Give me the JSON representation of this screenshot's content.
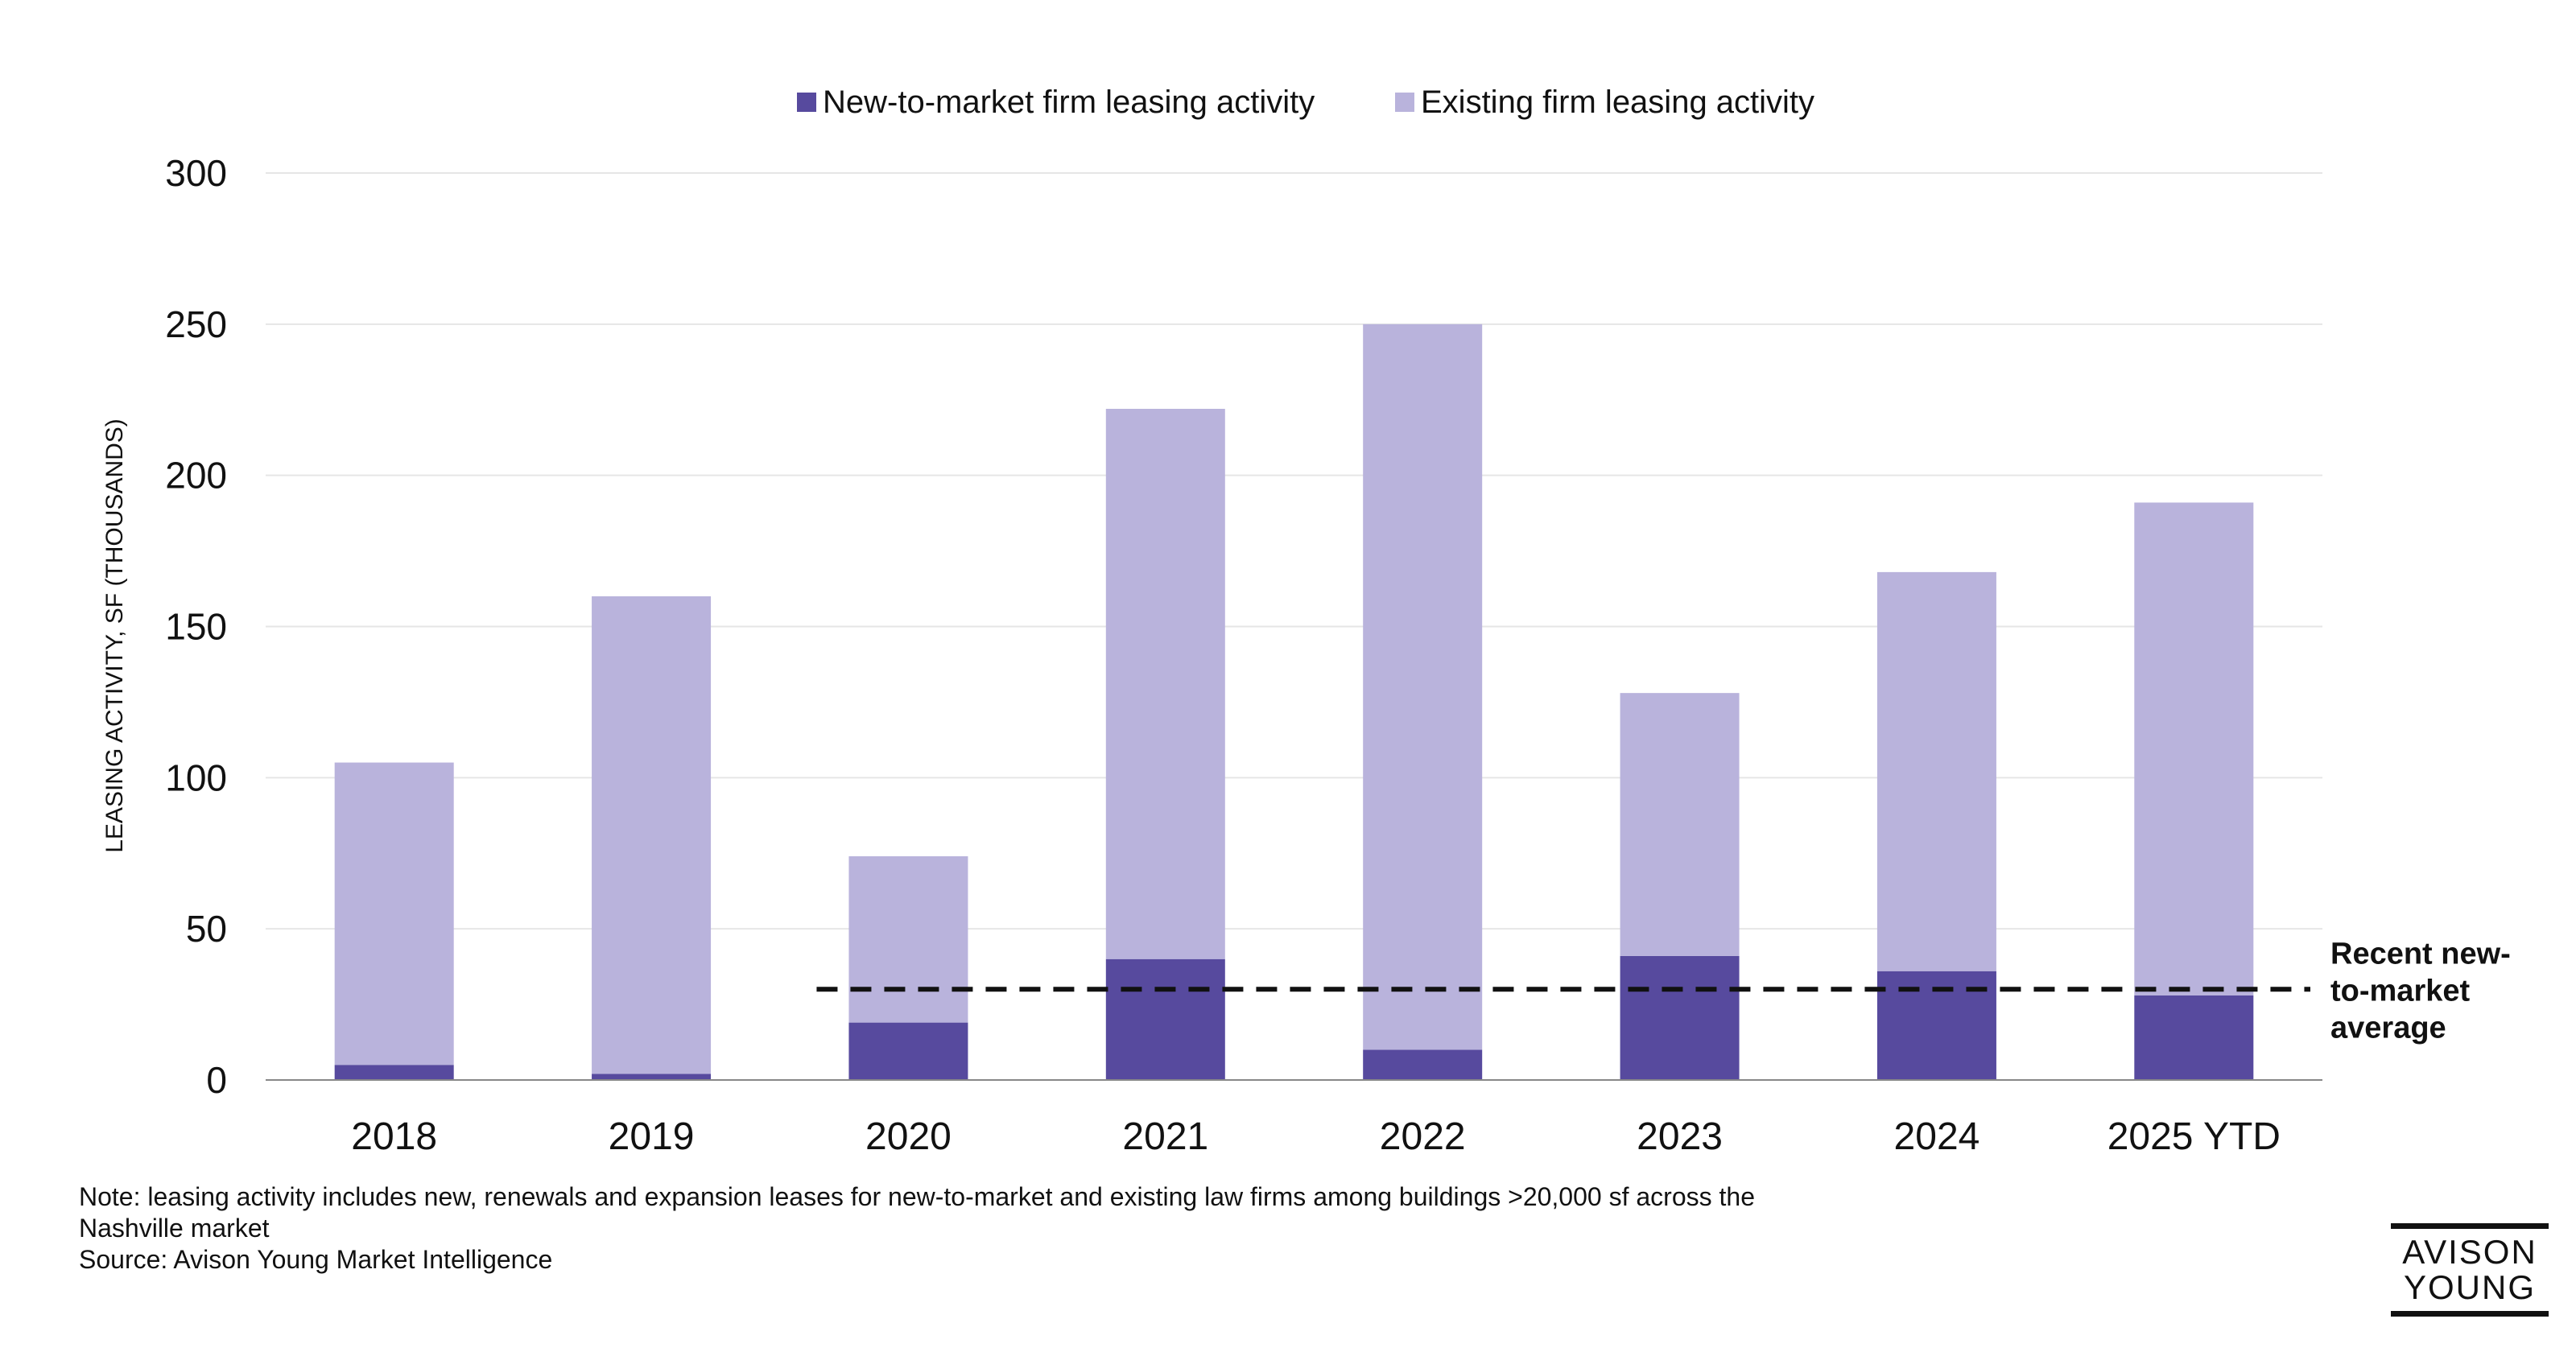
{
  "chart_data": {
    "type": "bar",
    "stacked": true,
    "categories": [
      "2018",
      "2019",
      "2020",
      "2021",
      "2022",
      "2023",
      "2024",
      "2025 YTD"
    ],
    "series": [
      {
        "name": "New-to-market firm leasing activity",
        "color": "#574a9e",
        "values": [
          5,
          2,
          19,
          40,
          10,
          41,
          36,
          28
        ]
      },
      {
        "name": "Existing firm leasing activity",
        "color": "#b9b3dc",
        "values": [
          100,
          158,
          55,
          182,
          240,
          87,
          132,
          163
        ]
      }
    ],
    "ylabel": "LEASING ACTIVITY, SF (THOUSANDS)",
    "ylim": [
      0,
      300
    ],
    "yticks": [
      "0",
      "50",
      "100",
      "150",
      "200",
      "250",
      "300"
    ],
    "grid": true,
    "legend": "top-center",
    "reference_line": {
      "value": 30,
      "start_category": "2020",
      "style": "dashed",
      "label_lines": [
        "Recent new-",
        "to-market",
        "average"
      ]
    }
  },
  "footnote": {
    "note_line1": "Note: leasing activity includes new, renewals and expansion leases for new-to-market and existing law firms among buildings >20,000 sf across the",
    "note_line2": "Nashville market",
    "source": "Source: Avison Young Market Intelligence"
  },
  "logo": {
    "line1": "AVISON",
    "line2": "YOUNG"
  }
}
